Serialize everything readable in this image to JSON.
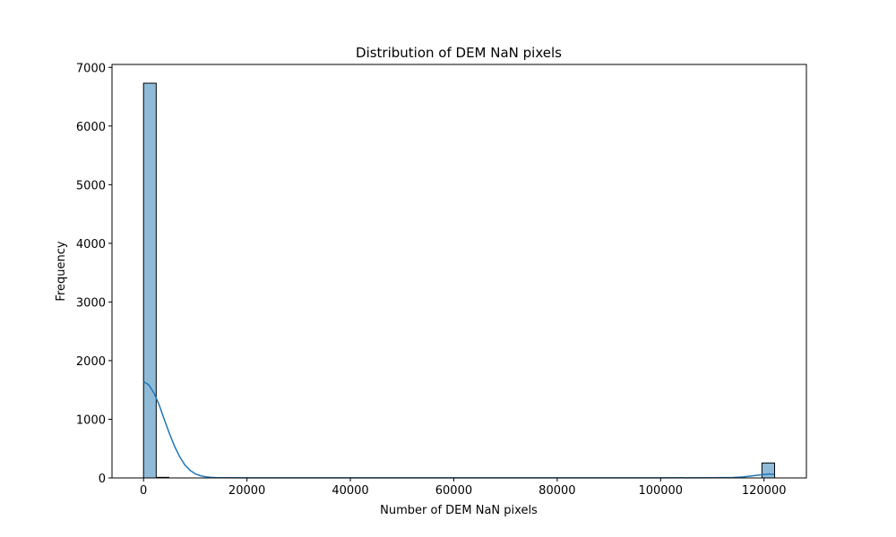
{
  "chart_data": {
    "type": "bar",
    "title": "Distribution of DEM NaN pixels",
    "xlabel": "Number of DEM NaN pixels",
    "ylabel": "Frequency",
    "xlim": [
      -6100,
      128200
    ],
    "ylim": [
      0,
      7050
    ],
    "xticks": [
      0,
      20000,
      40000,
      60000,
      80000,
      100000,
      120000
    ],
    "xtick_labels": [
      "0",
      "20000",
      "40000",
      "60000",
      "80000",
      "100000",
      "120000"
    ],
    "yticks": [
      0,
      1000,
      2000,
      3000,
      4000,
      5000,
      6000,
      7000
    ],
    "ytick_labels": [
      "0",
      "1000",
      "2000",
      "3000",
      "4000",
      "5000",
      "6000",
      "7000"
    ],
    "bins": [
      {
        "x0": 0,
        "x1": 2450,
        "count": 6730
      },
      {
        "x0": 2450,
        "x1": 4900,
        "count": 10
      },
      {
        "x0": 119600,
        "x1": 122050,
        "count": 255
      }
    ],
    "kde": {
      "x": [
        0,
        1000,
        2000,
        3000,
        4000,
        5000,
        6000,
        7000,
        8000,
        9000,
        10000,
        11000,
        12000,
        13000,
        14000,
        16000,
        20000,
        40000,
        60000,
        80000,
        100000,
        110000,
        114000,
        116000,
        118000,
        120000,
        121000,
        122000
      ],
      "y": [
        1640,
        1590,
        1450,
        1250,
        1000,
        760,
        540,
        360,
        220,
        130,
        70,
        38,
        20,
        10,
        5,
        3,
        2,
        2,
        2,
        2,
        2,
        4,
        8,
        18,
        38,
        60,
        66,
        62
      ]
    },
    "bar_color": "#1f77b4",
    "bar_alpha": 0.5,
    "line_color": "#1f77b4",
    "grid": false
  }
}
